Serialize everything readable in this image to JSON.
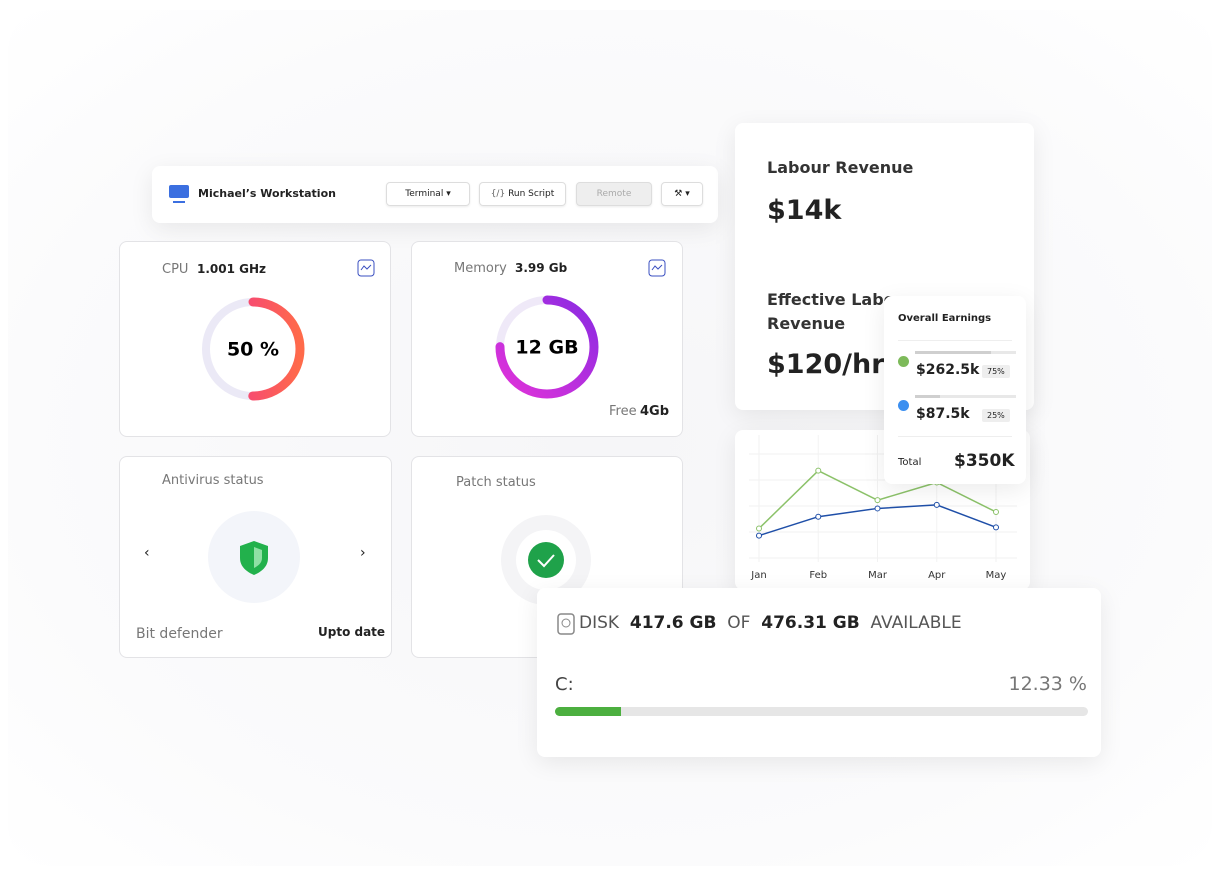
{
  "toolbar": {
    "title": "Michael’s Workstation",
    "buttons": [
      "Terminal",
      "Run Script",
      "Remote"
    ]
  },
  "cpu": {
    "label": "CPU",
    "speed": "1.001 GHz",
    "gauge": {
      "value": 50,
      "label": "50 %"
    }
  },
  "memory": {
    "label": "Memory",
    "size": "3.99 Gb",
    "used": {
      "value": 12,
      "label": "12 GB"
    },
    "free_label": "Free",
    "free": {
      "value": 4,
      "label": "4Gb"
    }
  },
  "antivirus": {
    "label": "Antivirus status",
    "name": "Bit defender",
    "status": "Upto date"
  },
  "patch": {
    "label": "Patch status"
  },
  "revenue": {
    "labour_title": "Labour Revenue",
    "labour_value": "$14k",
    "effective_title": "Effective Labour Revenue",
    "effective_value": "$120/hr"
  },
  "earnings": {
    "title": "Overall Earnings",
    "items": [
      {
        "amount": "$262.5k",
        "share": {
          "value": 75,
          "label": "75%"
        },
        "color": "#7dba5a"
      },
      {
        "amount": "$87.5k",
        "share": {
          "value": 25,
          "label": "25%"
        },
        "color": "#3b8ff0"
      }
    ],
    "total_label": "Total",
    "total": "$350K"
  },
  "chart_data": {
    "type": "line",
    "categories": [
      "Jan",
      "Feb",
      "Mar",
      "Apr",
      "May"
    ],
    "ylim": [
      0,
      100
    ],
    "series": [
      {
        "color": "#8cc26a",
        "values": [
          25,
          74,
          49,
          64,
          39
        ]
      },
      {
        "color": "#1f4fa8",
        "values": [
          19,
          35,
          42,
          45,
          26
        ]
      }
    ]
  },
  "disk": {
    "label": "DISK",
    "free": "417.6 GB",
    "of": "OF",
    "total": "476.31 GB",
    "available": "AVAILABLE",
    "drive": "C:",
    "percent": {
      "value": 12.33,
      "label": "12.33 %"
    }
  }
}
